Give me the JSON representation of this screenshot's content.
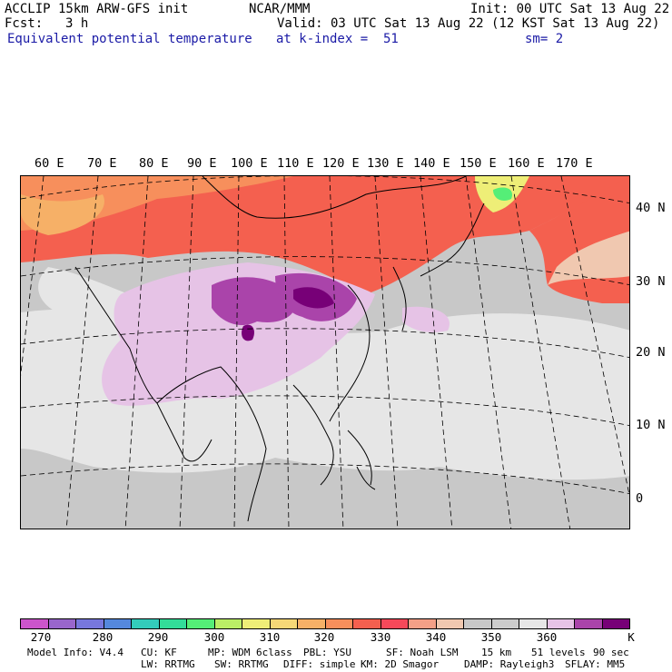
{
  "header": {
    "model_title": "ACCLIP 15km ARW-GFS init",
    "institution": "NCAR/MMM",
    "init_time": "Init: 00 UTC Sat 13 Aug 22",
    "fcst_label": "Fcst:",
    "fcst_value": "3 h",
    "valid_time": "Valid: 03 UTC Sat 13 Aug 22 (12 KST Sat 13 Aug 22)",
    "field_name": "Equivalent potential temperature",
    "level": "at k-index =  51",
    "smoothing": "sm= 2"
  },
  "map": {
    "longitude_labels": [
      "60 E",
      "70 E",
      "80 E",
      "90 E",
      "100 E",
      "110 E",
      "120 E",
      "130 E",
      "140 E",
      "150 E",
      "160 E",
      "170 E"
    ],
    "latitude_labels": [
      "40 N",
      "30 N",
      "20 N",
      "10 N",
      "0"
    ]
  },
  "colorbar": {
    "unit": "K",
    "tick_labels": [
      "270",
      "280",
      "290",
      "300",
      "310",
      "320",
      "330",
      "340",
      "350",
      "360"
    ],
    "colors": [
      "#cc55cc",
      "#9966cc",
      "#7777dd",
      "#5588dd",
      "#33ccbb",
      "#33dd99",
      "#55ee77",
      "#bbee66",
      "#eeee77",
      "#f6d877",
      "#f6b067",
      "#f78f5c",
      "#f4604f",
      "#f6495a",
      "#f4a087",
      "#f0c8b0",
      "#c8c8c8",
      "#cccccc",
      "#e6e6e6",
      "#e6c3e6",
      "#aa44aa",
      "#770077"
    ]
  },
  "footer": {
    "model_info": "Model Info: V4.4",
    "cu": "CU: KF",
    "mp": "MP: WDM 6class",
    "pbl": "PBL: YSU",
    "sf": "SF: Noah LSM",
    "resolution": "15 km",
    "levels": "51 levels",
    "timestep": "90 sec",
    "lw": "LW: RRTMG",
    "sw": "SW: RRTMG",
    "diff": "DIFF: simple",
    "km": "KM: 2D Smagor",
    "damp": "DAMP: Rayleigh3",
    "sflay": "SFLAY: MM5"
  }
}
